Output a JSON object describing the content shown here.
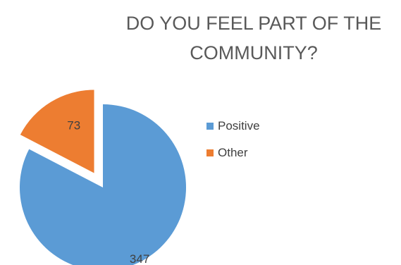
{
  "chart_data": {
    "type": "pie",
    "title_lines": [
      "DO YOU FEEL PART OF THE",
      "COMMUNITY?"
    ],
    "categories": [
      "Positive",
      "Other"
    ],
    "values": [
      347,
      73
    ],
    "colors": [
      "#5b9bd5",
      "#ed7d31"
    ],
    "data_labels": [
      "347",
      "73"
    ],
    "legend_position": "right",
    "exploded": "Other"
  }
}
